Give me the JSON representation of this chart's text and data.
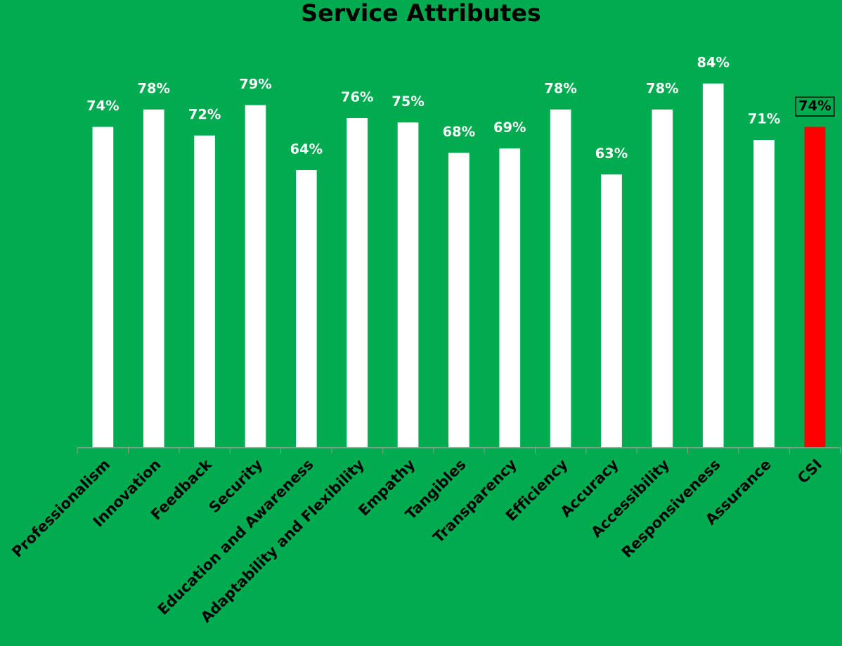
{
  "chart_data": {
    "type": "bar",
    "title": "Service Attributes",
    "categories": [
      "Professionalism",
      "Innovation",
      "Feedback",
      "Security",
      "Education and Awareness",
      "Adaptability and Flexibility",
      "Empathy",
      "Tangibles",
      "Transparency",
      "Efficiency",
      "Accuracy",
      "Accessibility",
      "Responsiveness",
      "Assurance",
      "CSI"
    ],
    "values": [
      74,
      78,
      72,
      79,
      64,
      76,
      75,
      68,
      69,
      78,
      63,
      78,
      84,
      71,
      74
    ],
    "value_labels": [
      "74%",
      "78%",
      "72%",
      "79%",
      "64%",
      "76%",
      "75%",
      "68%",
      "69%",
      "78%",
      "63%",
      "78%",
      "84%",
      "71%",
      "74%"
    ],
    "colors": [
      "#ffffff",
      "#ffffff",
      "#ffffff",
      "#ffffff",
      "#ffffff",
      "#ffffff",
      "#ffffff",
      "#ffffff",
      "#ffffff",
      "#ffffff",
      "#ffffff",
      "#ffffff",
      "#ffffff",
      "#ffffff",
      "#ff0000"
    ],
    "grid": false,
    "legend": false
  }
}
